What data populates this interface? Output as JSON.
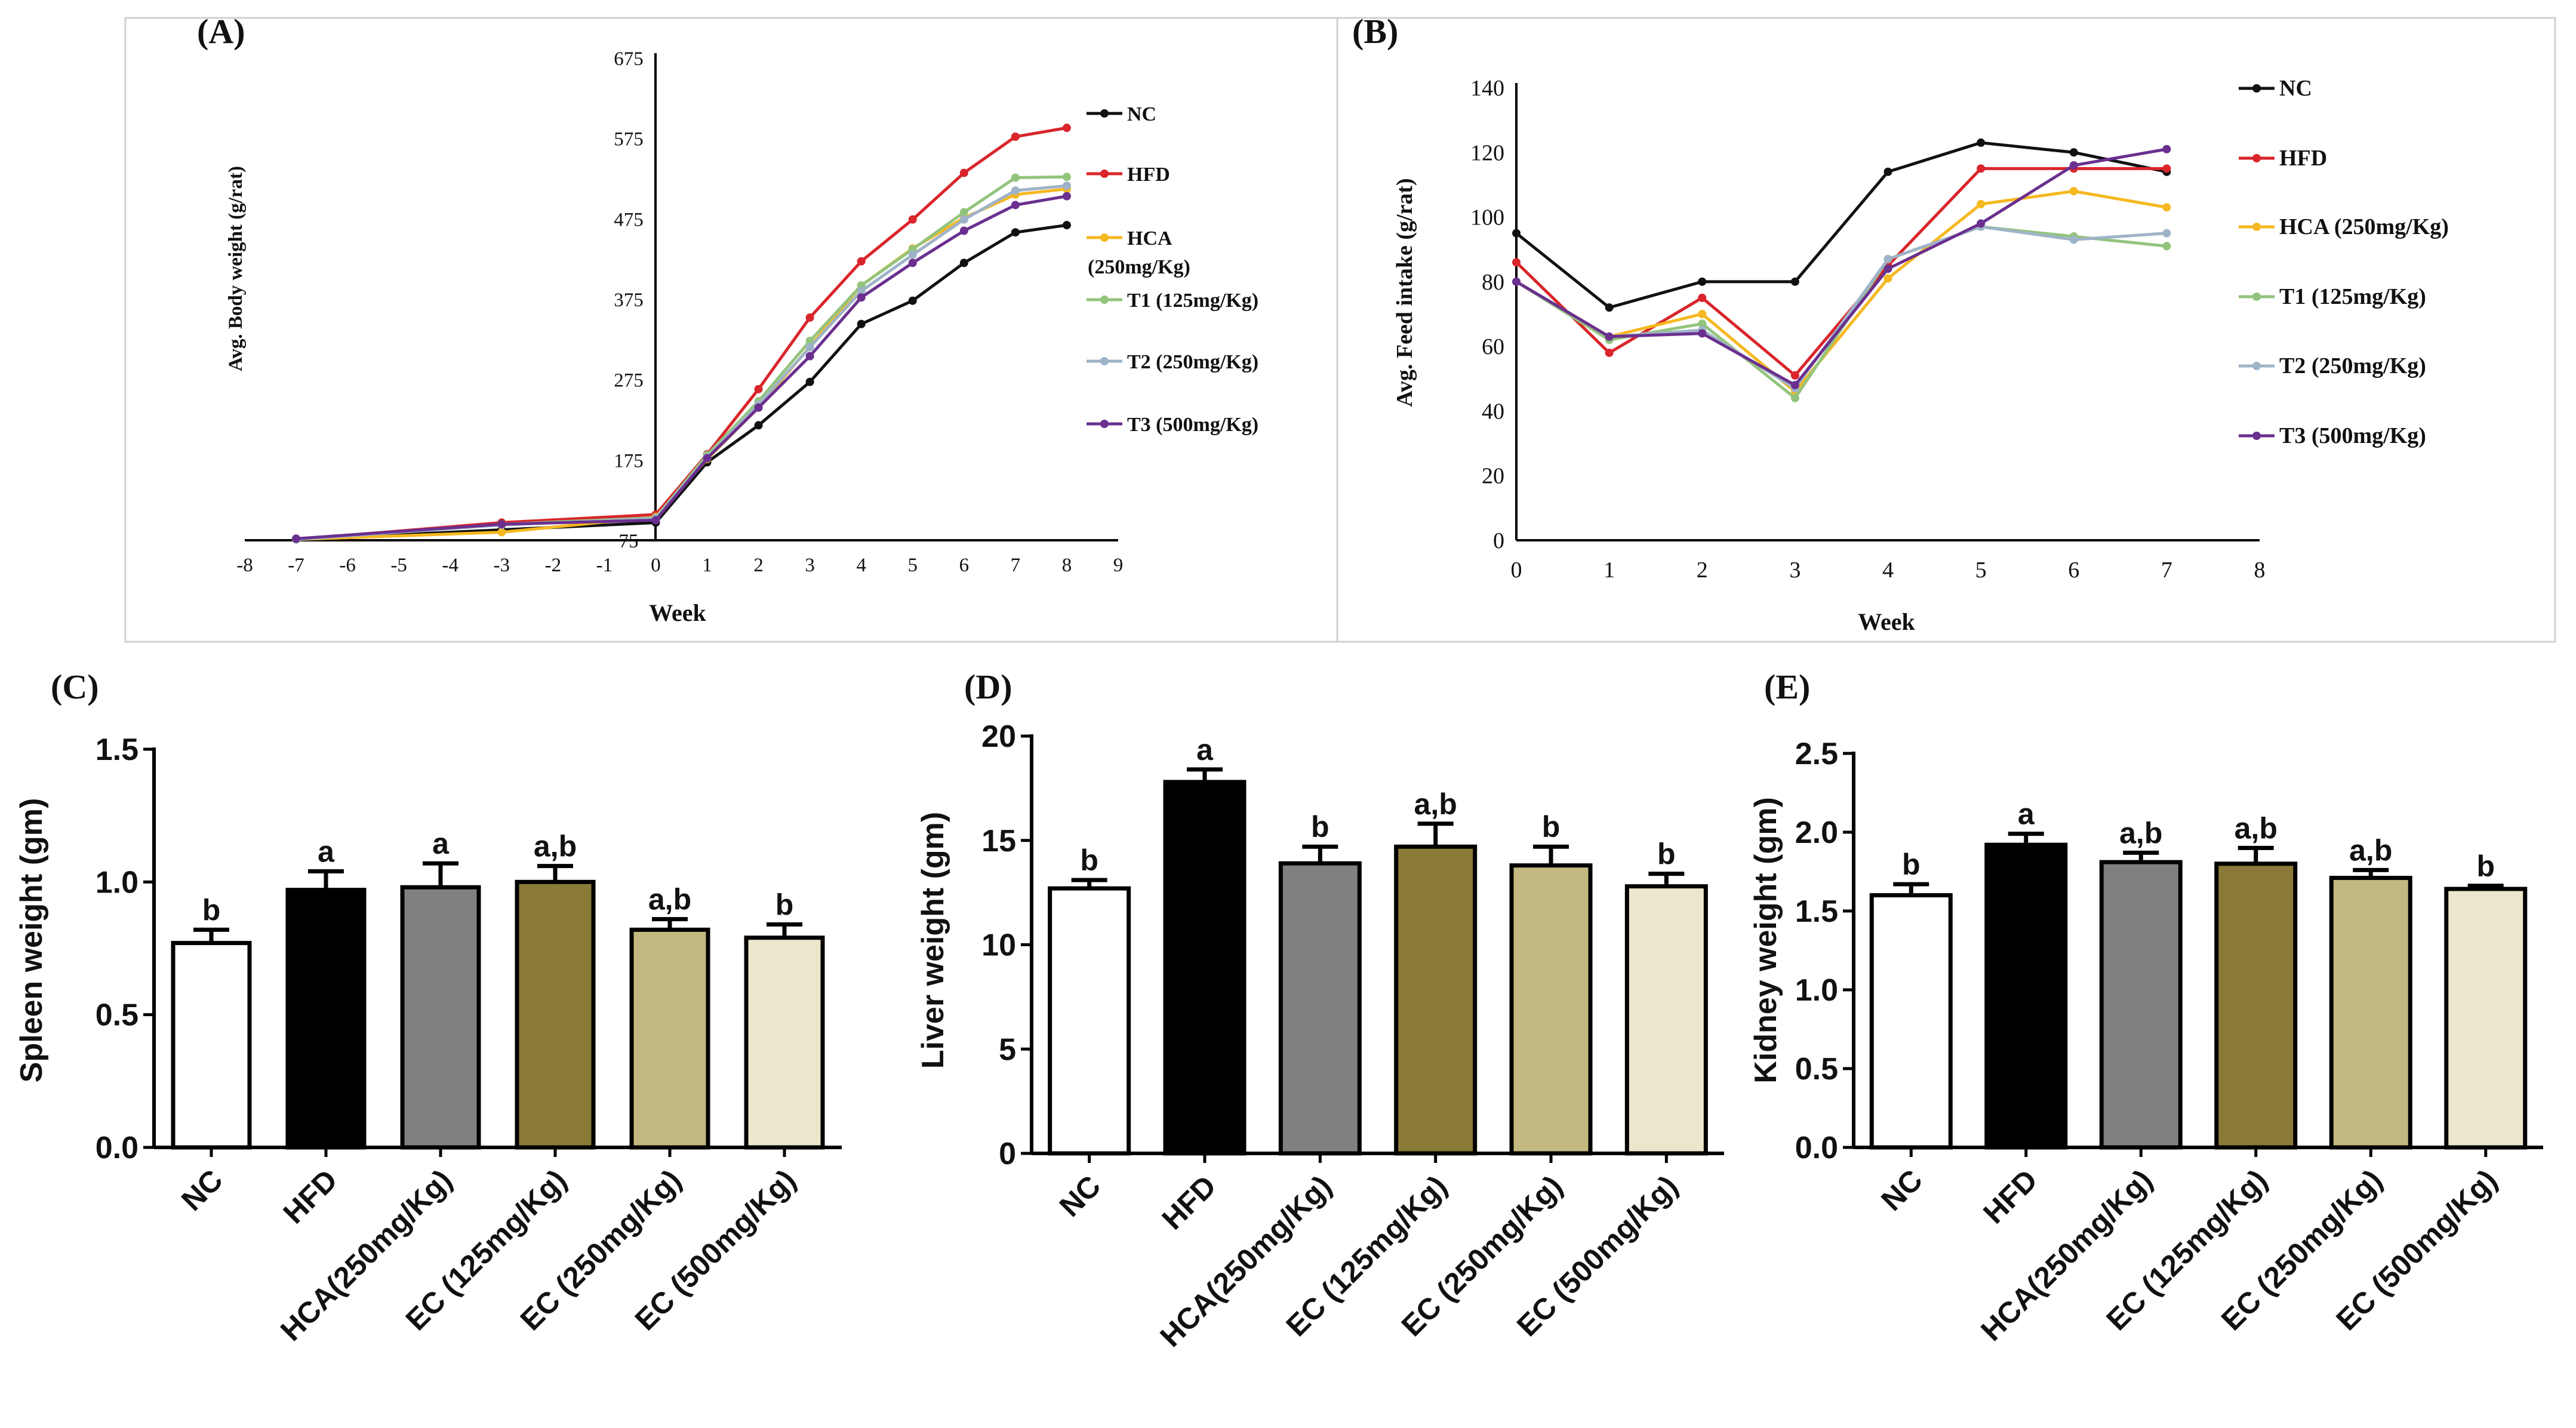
{
  "colors": {
    "NC": "#111111",
    "HFD": "#d9252b",
    "HCA": "#f6b820",
    "T1": "#93c47d",
    "T2": "#9fb3c8",
    "T3": "#6a2f8f",
    "bars": [
      "#ffffff",
      "#000000",
      "#808080",
      "#8a7a38",
      "#c2b880",
      "#ece7cc"
    ]
  },
  "chart_data": [
    {
      "panel": "(A)",
      "type": "line",
      "title": "",
      "xlabel": "Week",
      "ylabel": "Avg. Body weight (g/rat)",
      "xlim": [
        -8,
        9
      ],
      "ylim": [
        75,
        675
      ],
      "x_ticks": [
        "-8",
        "-7",
        "-6",
        "-5",
        "-4",
        "-3",
        "-2",
        "-1",
        "0",
        "1",
        "2",
        "3",
        "4",
        "5",
        "6",
        "7",
        "8",
        "9"
      ],
      "y_ticks": [
        "675",
        "575",
        "475",
        "375",
        "275",
        "175",
        "75"
      ],
      "x": [
        -7,
        -3,
        0,
        1,
        2,
        3,
        4,
        5,
        6,
        7,
        8
      ],
      "series": [
        {
          "key": "NC",
          "name": "NC",
          "values": [
            76,
            88,
            97,
            172,
            218,
            272,
            344,
            373,
            420,
            458,
            467
          ]
        },
        {
          "key": "HFD",
          "name": "HFD",
          "values": [
            76,
            97,
            107,
            182,
            263,
            352,
            422,
            474,
            532,
            577,
            588
          ]
        },
        {
          "key": "HCA",
          "name": "HCA",
          "name2": "(250mg/Kg)",
          "values": [
            76,
            85,
            104,
            176,
            240,
            316,
            392,
            438,
            476,
            505,
            512
          ]
        },
        {
          "key": "T1",
          "name": "T1 (125mg/Kg)",
          "values": [
            76,
            95,
            103,
            181,
            248,
            323,
            392,
            437,
            483,
            526,
            527
          ]
        },
        {
          "key": "T2",
          "name": "T2 (250mg/Kg)",
          "values": [
            76,
            94,
            102,
            178,
            244,
            315,
            385,
            430,
            474,
            510,
            516
          ]
        },
        {
          "key": "T3",
          "name": "T3 (500mg/Kg)",
          "values": [
            77,
            95,
            100,
            177,
            240,
            304,
            377,
            420,
            460,
            492,
            503
          ]
        }
      ]
    },
    {
      "panel": "(B)",
      "type": "line",
      "title": "",
      "xlabel": "Week",
      "ylabel": "Avg. Feed intake (g/rat)",
      "xlim": [
        0,
        8
      ],
      "ylim": [
        0,
        140
      ],
      "x_ticks": [
        "0",
        "1",
        "2",
        "3",
        "4",
        "5",
        "6",
        "7",
        "8"
      ],
      "y_ticks": [
        "140",
        "120",
        "100",
        "80",
        "60",
        "40",
        "20",
        "0"
      ],
      "x": [
        0,
        1,
        2,
        3,
        4,
        5,
        6,
        7
      ],
      "series": [
        {
          "key": "NC",
          "name": "NC",
          "values": [
            95,
            72,
            80,
            80,
            114,
            123,
            120,
            114
          ]
        },
        {
          "key": "HFD",
          "name": "HFD",
          "values": [
            86,
            58,
            75,
            51,
            85,
            115,
            115,
            115
          ]
        },
        {
          "key": "HCA",
          "name": "HCA (250mg/Kg)",
          "values": [
            80,
            63,
            70,
            46,
            81,
            104,
            108,
            103
          ]
        },
        {
          "key": "T1",
          "name": "T1 (125mg/Kg)",
          "values": [
            80,
            62,
            67,
            44,
            87,
            97,
            94,
            91
          ]
        },
        {
          "key": "T2",
          "name": "T2 (250mg/Kg)",
          "values": [
            80,
            63,
            65,
            47,
            87,
            97,
            93,
            95
          ]
        },
        {
          "key": "T3",
          "name": "T3 (500mg/Kg)",
          "values": [
            80,
            63,
            64,
            48,
            84,
            98,
            116,
            121
          ]
        }
      ]
    },
    {
      "panel": "(C)",
      "type": "bar",
      "ylabel": "Spleen weight (gm)",
      "ylim": [
        0,
        1.5
      ],
      "y_ticks": [
        "0.0",
        "0.5",
        "1.0",
        "1.5"
      ],
      "categories": [
        "NC",
        "HFD",
        "HCA(250mg/Kg)",
        "EC (125mg/Kg)",
        "EC (250mg/Kg)",
        "EC (500mg/Kg)"
      ],
      "values": [
        0.77,
        0.97,
        0.98,
        1.0,
        0.82,
        0.79
      ],
      "errors": [
        0.05,
        0.07,
        0.09,
        0.06,
        0.04,
        0.05
      ],
      "annotations": [
        "b",
        "a",
        "a",
        "a,b",
        "a,b",
        "b"
      ]
    },
    {
      "panel": "(D)",
      "type": "bar",
      "ylabel": "Liver weight (gm)",
      "ylim": [
        0,
        20
      ],
      "y_ticks": [
        "0",
        "5",
        "10",
        "15",
        "20"
      ],
      "categories": [
        "NC",
        "HFD",
        "HCA(250mg/Kg)",
        "EC (125mg/Kg)",
        "EC (250mg/Kg)",
        "EC (500mg/Kg)"
      ],
      "values": [
        12.7,
        17.8,
        13.9,
        14.7,
        13.8,
        12.8
      ],
      "errors": [
        0.4,
        0.6,
        0.8,
        1.1,
        0.9,
        0.6
      ],
      "annotations": [
        "b",
        "a",
        "b",
        "a,b",
        "b",
        "b"
      ]
    },
    {
      "panel": "(E)",
      "type": "bar",
      "ylabel": "Kidney weight (gm)",
      "ylim": [
        0,
        2.5
      ],
      "y_ticks": [
        "0.0",
        "0.5",
        "1.0",
        "1.5",
        "2.0",
        "2.5"
      ],
      "categories": [
        "NC",
        "HFD",
        "HCA(250mg/Kg)",
        "EC (125mg/Kg)",
        "EC (250mg/Kg)",
        "EC (500mg/Kg)"
      ],
      "values": [
        1.6,
        1.92,
        1.81,
        1.8,
        1.71,
        1.64
      ],
      "errors": [
        0.07,
        0.07,
        0.06,
        0.1,
        0.05,
        0.02
      ],
      "annotations": [
        "b",
        "a",
        "a,b",
        "a,b",
        "a,b",
        "b"
      ]
    }
  ]
}
